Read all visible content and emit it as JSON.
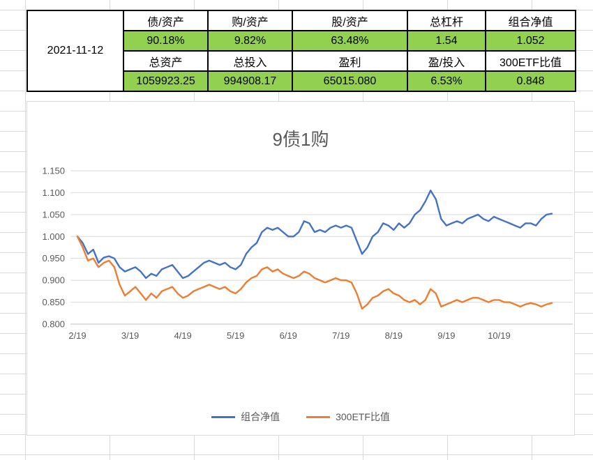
{
  "sheet": {
    "date": "2021-11-12",
    "table": {
      "row_groups": [
        {
          "headers": [
            "债/资产",
            "购/资产",
            "股/资产",
            "总杠杆",
            "组合净值"
          ],
          "values": [
            "90.18%",
            "9.82%",
            "63.48%",
            "1.54",
            "1.052"
          ]
        },
        {
          "headers": [
            "总资产",
            "总投入",
            "盈利",
            "盈/投入",
            "300ETF比值"
          ],
          "values": [
            "1059923.25",
            "994908.17",
            "65015.080",
            "6.53%",
            "0.848"
          ]
        }
      ]
    }
  },
  "colors": {
    "value_cell_fill": "#92D050",
    "series_blue": "#4472C4",
    "series_orange": "#ED7D31",
    "chart_text": "#595959",
    "gridline": "#D9D9D9",
    "axis_line": "#BFBFBF"
  },
  "chart_data": {
    "type": "line",
    "title": "9债1购",
    "xlabel": "",
    "ylabel": "",
    "grid": true,
    "legend_position": "bottom",
    "ylim": [
      0.8,
      1.15
    ],
    "y_ticks": [
      1.15,
      1.1,
      1.05,
      1.0,
      0.95,
      0.9,
      0.85,
      0.8
    ],
    "y_tick_decimals": 3,
    "x_tick_labels": [
      "2/19",
      "3/19",
      "4/19",
      "5/19",
      "6/19",
      "7/19",
      "8/19",
      "9/19",
      "10/19"
    ],
    "x_ticks_every_n_points": 10,
    "series": [
      {
        "name": "组合净值",
        "color": "#4472C4",
        "values": [
          1.0,
          0.985,
          0.96,
          0.97,
          0.94,
          0.952,
          0.955,
          0.95,
          0.93,
          0.92,
          0.925,
          0.93,
          0.92,
          0.905,
          0.915,
          0.91,
          0.925,
          0.93,
          0.935,
          0.92,
          0.905,
          0.91,
          0.92,
          0.93,
          0.94,
          0.945,
          0.94,
          0.935,
          0.94,
          0.93,
          0.925,
          0.935,
          0.96,
          0.975,
          0.985,
          1.01,
          1.02,
          1.015,
          1.02,
          1.01,
          1.0,
          1.0,
          1.01,
          1.035,
          1.03,
          1.01,
          1.015,
          1.01,
          1.02,
          1.025,
          1.02,
          1.025,
          1.02,
          0.99,
          0.96,
          0.975,
          1.0,
          1.01,
          1.03,
          1.025,
          1.015,
          1.03,
          1.02,
          1.03,
          1.05,
          1.06,
          1.08,
          1.105,
          1.085,
          1.04,
          1.025,
          1.03,
          1.035,
          1.03,
          1.04,
          1.045,
          1.05,
          1.04,
          1.035,
          1.045,
          1.04,
          1.035,
          1.03,
          1.025,
          1.02,
          1.03,
          1.03,
          1.025,
          1.04,
          1.05,
          1.052
        ]
      },
      {
        "name": "300ETF比值",
        "color": "#ED7D31",
        "values": [
          1.0,
          0.975,
          0.945,
          0.95,
          0.93,
          0.94,
          0.945,
          0.93,
          0.89,
          0.865,
          0.875,
          0.885,
          0.87,
          0.855,
          0.87,
          0.86,
          0.875,
          0.88,
          0.885,
          0.87,
          0.86,
          0.865,
          0.875,
          0.88,
          0.885,
          0.89,
          0.885,
          0.88,
          0.885,
          0.875,
          0.87,
          0.88,
          0.895,
          0.905,
          0.91,
          0.925,
          0.93,
          0.92,
          0.925,
          0.915,
          0.91,
          0.905,
          0.91,
          0.92,
          0.915,
          0.905,
          0.9,
          0.895,
          0.9,
          0.905,
          0.9,
          0.9,
          0.895,
          0.87,
          0.835,
          0.845,
          0.86,
          0.865,
          0.875,
          0.88,
          0.87,
          0.865,
          0.855,
          0.85,
          0.855,
          0.845,
          0.855,
          0.88,
          0.87,
          0.84,
          0.845,
          0.85,
          0.855,
          0.85,
          0.855,
          0.86,
          0.86,
          0.855,
          0.85,
          0.855,
          0.855,
          0.85,
          0.85,
          0.845,
          0.84,
          0.845,
          0.848,
          0.845,
          0.84,
          0.845,
          0.848
        ]
      }
    ]
  }
}
